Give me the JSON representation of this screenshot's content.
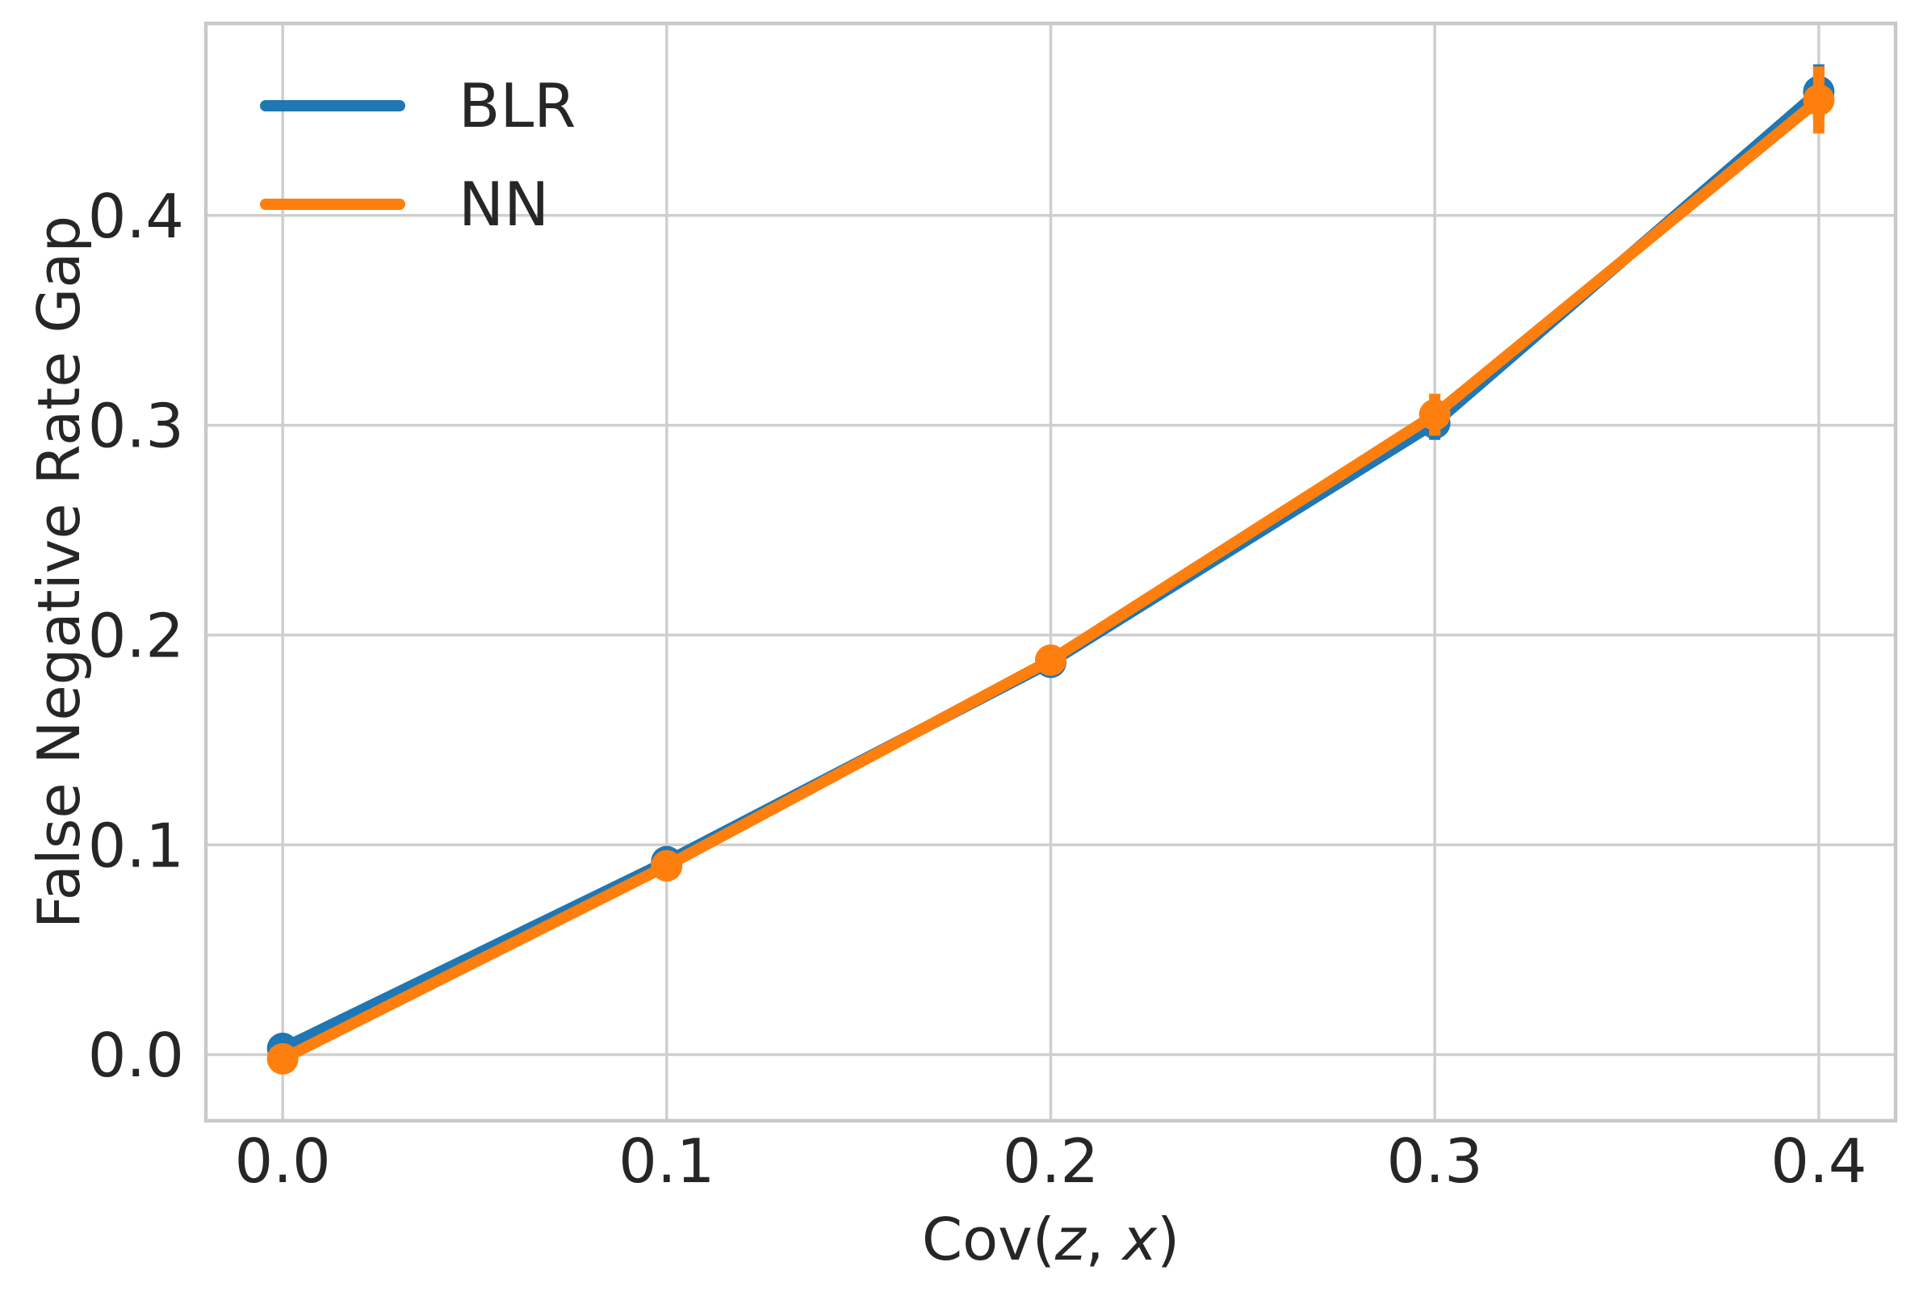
{
  "chart_data": {
    "type": "line",
    "title": "",
    "xlabel_plain": "Cov(z, x)",
    "xlabel_segments": [
      {
        "text": "Cov(",
        "italic": false
      },
      {
        "text": "z",
        "italic": true
      },
      {
        "text": ", ",
        "italic": false
      },
      {
        "text": "x",
        "italic": true
      },
      {
        "text": ")",
        "italic": false
      }
    ],
    "ylabel": "False Negative Rate Gap",
    "x": [
      0.0,
      0.1,
      0.2,
      0.3,
      0.4
    ],
    "series": [
      {
        "name": "BLR",
        "color": "#1f77b4",
        "values": [
          0.003,
          0.092,
          0.187,
          0.301,
          0.459
        ],
        "yerr": [
          0.003,
          0.004,
          0.005,
          0.008,
          0.013
        ]
      },
      {
        "name": "NN",
        "color": "#ff7f0e",
        "values": [
          -0.002,
          0.09,
          0.188,
          0.305,
          0.455
        ],
        "yerr": [
          0.004,
          0.005,
          0.006,
          0.01,
          0.016
        ]
      }
    ],
    "x_ticks": {
      "values": [
        0.0,
        0.1,
        0.2,
        0.3,
        0.4
      ],
      "labels": [
        "0.0",
        "0.1",
        "0.2",
        "0.3",
        "0.4"
      ]
    },
    "y_ticks": {
      "values": [
        0.0,
        0.1,
        0.2,
        0.3,
        0.4
      ],
      "labels": [
        "0.0",
        "0.1",
        "0.2",
        "0.3",
        "0.4"
      ]
    },
    "xlim": [
      -0.02,
      0.42
    ],
    "ylim": [
      -0.0315,
      0.4915
    ],
    "grid": true,
    "legend_position": "upper-left",
    "style": {
      "grid_color": "#cfcfcf",
      "spine_color": "#c9c9c9",
      "text_color": "#262626",
      "background": "#ffffff"
    }
  }
}
